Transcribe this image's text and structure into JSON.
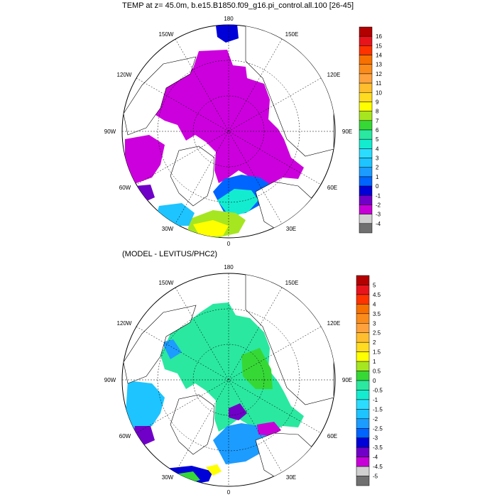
{
  "top_panel": {
    "title": "TEMP at z=  45.0m, b.e15.B1850.f09_g16.pi_control.all.100 [26-45]",
    "longitude_labels": {
      "deg180": "180",
      "deg150W": "150W",
      "deg150E": "150E",
      "deg120W": "120W",
      "deg120E": "120E",
      "deg90W": "90W",
      "deg90E": "90E",
      "deg60W": "60W",
      "deg60E": "60E",
      "deg30W": "30W",
      "deg30E": "30E",
      "deg0": "0"
    },
    "colorbar": {
      "labels": [
        "16",
        "15",
        "14",
        "13",
        "12",
        "11",
        "10",
        "9",
        "8",
        "7",
        "6",
        "5",
        "4",
        "3",
        "2",
        "1",
        "0",
        "-1",
        "-2",
        "-3",
        "-4"
      ],
      "colors": [
        "#b30000",
        "#e8141c",
        "#ff3300",
        "#f77000",
        "#fb8c1c",
        "#ffa23e",
        "#ffbe2e",
        "#ffdc20",
        "#ffff00",
        "#a6e620",
        "#36d836",
        "#2ae8a0",
        "#14ecd0",
        "#2cdcff",
        "#1ec4ff",
        "#1c9cff",
        "#0064ff",
        "#0000d8",
        "#7000c8",
        "#c800d8",
        "#d0d0d0",
        "#707070"
      ]
    }
  },
  "bottom_panel": {
    "title": "(MODEL - LEVITUS/PHC2)",
    "longitude_labels": {
      "deg180": "180",
      "deg150W": "150W",
      "deg150E": "150E",
      "deg120W": "120W",
      "deg120E": "120E",
      "deg90W": "90W",
      "deg90E": "90E",
      "deg60W": "60W",
      "deg60E": "60E",
      "deg30W": "30W",
      "deg30E": "30E",
      "deg0": "0"
    },
    "colorbar": {
      "labels": [
        "5",
        "4.5",
        "4",
        "3.5",
        "3",
        "2.5",
        "2",
        "1.5",
        "1",
        "0.5",
        "0",
        "-0.5",
        "-1",
        "-1.5",
        "-2",
        "-2.5",
        "-3",
        "-3.5",
        "-4",
        "-4.5",
        "-5"
      ],
      "colors": [
        "#b30000",
        "#e8141c",
        "#ff3300",
        "#f77000",
        "#fb8c1c",
        "#ffa23e",
        "#ffbe2e",
        "#ffdc20",
        "#ffff00",
        "#a6e620",
        "#36d836",
        "#2ae8a0",
        "#14ecd0",
        "#2cdcff",
        "#1ec4ff",
        "#1c9cff",
        "#0064ff",
        "#0000d8",
        "#7000c8",
        "#c800d8",
        "#d0d0d0",
        "#707070"
      ]
    }
  },
  "colors": {
    "ocean_cold": "#cc00dd",
    "ocean_anomaly": "#2ae8a0",
    "land": "#ffffff"
  }
}
